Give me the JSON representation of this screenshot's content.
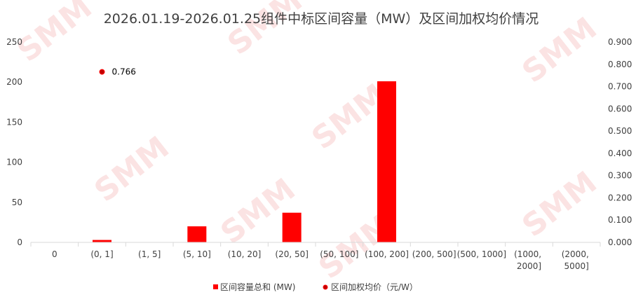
{
  "chart_data": {
    "type": "bar",
    "title": "2026.01.19-2026.01.25组件中标区间容量（MW）及区间加权均价情况",
    "categories": [
      "0",
      "(0, 1]",
      "(1, 5]",
      "(5, 10]",
      "(10, 20]",
      "(20, 50]",
      "(50, 100]",
      "(100, 200]",
      "(200, 500]",
      "(500, 1000]",
      "(1000, 2000]",
      "(2000, 5000]"
    ],
    "y_left": {
      "min": 0,
      "max": 250,
      "step": 50,
      "ticks": [
        "0",
        "50",
        "100",
        "150",
        "200",
        "250"
      ]
    },
    "y_right": {
      "min": 0,
      "max": 0.9,
      "step": 0.1,
      "ticks": [
        "0.000",
        "0.100",
        "0.200",
        "0.300",
        "0.400",
        "0.500",
        "0.600",
        "0.700",
        "0.800",
        "0.900"
      ]
    },
    "series": [
      {
        "name": "区间容量总和 (MW)",
        "type": "bar",
        "axis": "left",
        "color": "#ff0000",
        "values": [
          0,
          3,
          0,
          20,
          0,
          37,
          0,
          201,
          0,
          0,
          0,
          0
        ]
      },
      {
        "name": "区间加权均价（元/W）",
        "type": "scatter",
        "axis": "right",
        "color": "#c00000",
        "values": [
          null,
          0.766,
          null,
          null,
          null,
          null,
          null,
          null,
          null,
          null,
          null,
          null
        ],
        "labels": [
          null,
          "0.766",
          null,
          null,
          null,
          null,
          null,
          null,
          null,
          null,
          null,
          null
        ]
      }
    ],
    "legend": "bottom",
    "grid": false
  },
  "watermark": "SMM"
}
